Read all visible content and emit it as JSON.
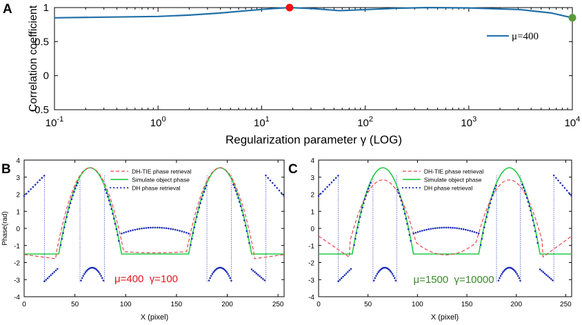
{
  "chart_data": [
    {
      "panel": "A",
      "type": "line",
      "title": "",
      "xlabel": "Regularization parameter γ (LOG)",
      "ylabel": "Correlation coefficient",
      "xscale": "log",
      "xlim": [
        0.1,
        10000
      ],
      "ylim": [
        -0.5,
        1
      ],
      "xtick_exponents": [
        "-1",
        "0",
        "1",
        "2",
        "3",
        "4"
      ],
      "ytick_labels": [
        "-0.5",
        "0",
        "0.5",
        "1"
      ],
      "ytick_values": [
        -0.5,
        0,
        0.5,
        1
      ],
      "series": [
        {
          "name": "μ=400",
          "color": "#1f6fa8",
          "log_x": [
            -1,
            -0.5,
            0,
            0.3,
            0.6,
            0.9,
            1.1,
            1.27,
            1.5,
            1.75,
            2.0,
            2.3,
            2.6,
            3.0,
            3.5,
            3.8,
            4.0
          ],
          "y": [
            0.85,
            0.86,
            0.87,
            0.89,
            0.92,
            0.96,
            0.985,
            1.0,
            0.985,
            0.955,
            0.97,
            0.99,
            1.0,
            0.995,
            0.97,
            0.92,
            0.85
          ]
        }
      ],
      "markers": [
        {
          "log_x": 1.27,
          "y": 1.0,
          "color": "#ee1111"
        },
        {
          "log_x": 4.0,
          "y": 0.85,
          "color": "#5a9a3a"
        }
      ],
      "legend_label": "μ=400",
      "legend_position": "right"
    },
    {
      "panel": "B",
      "type": "line",
      "xlabel": "X (pixel)",
      "ylabel": "Phase(rad)",
      "xlim": [
        0,
        256
      ],
      "ylim": [
        -4,
        4
      ],
      "xtick_labels": [
        "0",
        "50",
        "100",
        "150",
        "200",
        "250"
      ],
      "xtick_values": [
        0,
        50,
        100,
        150,
        200,
        250
      ],
      "ytick_labels": [
        "-4",
        "-3",
        "-2",
        "-1",
        "0",
        "1",
        "2",
        "3",
        "4"
      ],
      "ytick_values": [
        -4,
        -3,
        -2,
        -1,
        0,
        1,
        2,
        3,
        4
      ],
      "legend": [
        "DH-TIE phase retrieval",
        "Simulate object phase",
        "DH phase retrieval"
      ],
      "annotation": "μ=400  γ=100",
      "annotation_color": "#e8141c",
      "dh_scale": 1.0,
      "dh_base": -1.35,
      "dh_center_dip": 0.08,
      "dh_edge_up": 0.18
    },
    {
      "panel": "C",
      "type": "line",
      "xlabel": "X (pixel)",
      "ylabel": "",
      "xlim": [
        0,
        256
      ],
      "ylim": [
        -4,
        4
      ],
      "xtick_labels": [
        "0",
        "50",
        "100",
        "150",
        "200",
        "250"
      ],
      "xtick_values": [
        0,
        50,
        100,
        150,
        200,
        250
      ],
      "ytick_labels": [
        "-4",
        "-3",
        "-2",
        "-1",
        "0",
        "1",
        "2",
        "3",
        "4"
      ],
      "ytick_values": [
        -4,
        -3,
        -2,
        -1,
        0,
        1,
        2,
        3,
        4
      ],
      "legend": [
        "DH-TIE phase retrieval",
        "Simulate object phase",
        "DH phase retrieval"
      ],
      "annotation": "μ=1500  γ=10000",
      "annotation_color": "#3a8a2a",
      "dh_scale": 0.8,
      "dh_base": -0.7,
      "dh_center_dip": 0.85,
      "dh_edge_up": 0.9
    }
  ],
  "panel_letters": [
    "A",
    "B",
    "C"
  ],
  "colors": {
    "dh_tie": "#e8464e",
    "simulate": "#22cc44",
    "dh": "#1f2fb8",
    "curve_a": "#1f6fa8"
  }
}
